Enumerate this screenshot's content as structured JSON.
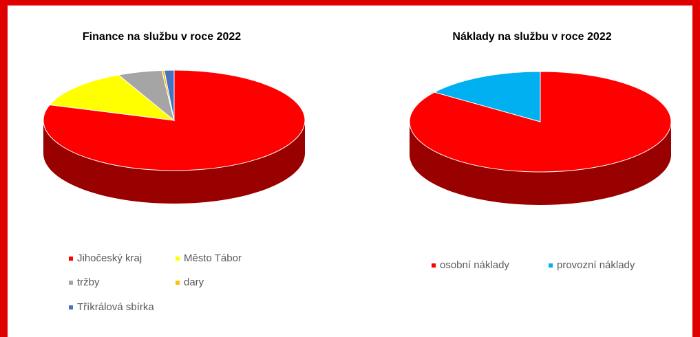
{
  "chart_data": [
    {
      "type": "pie",
      "title": "Finance na službu v roce 2022",
      "categories": [
        "Jihočeský kraj",
        "Město Tábor",
        "tržby",
        "dary",
        "Tříkrálová sbírka"
      ],
      "values": [
        80,
        13,
        5.5,
        0.3,
        1.2
      ],
      "colors": [
        "#ff0000",
        "#ffff00",
        "#a5a5a5",
        "#ffc000",
        "#4472c4"
      ]
    },
    {
      "type": "pie",
      "title": "Náklady na službu v roce 2022",
      "categories": [
        "osobní náklady",
        "provozní náklady"
      ],
      "values": [
        85,
        15
      ],
      "colors": [
        "#ff0000",
        "#00b0f0"
      ]
    }
  ]
}
